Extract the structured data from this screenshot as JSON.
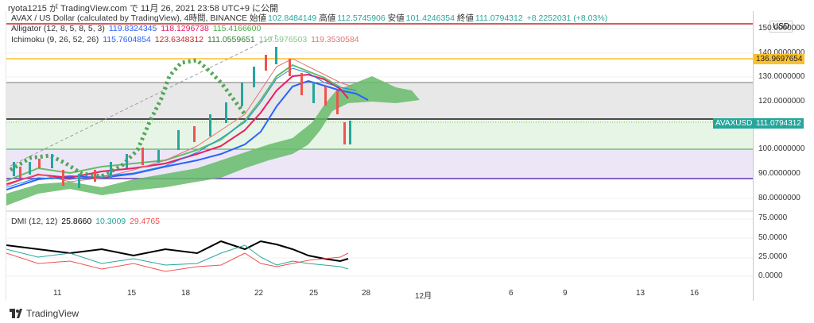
{
  "header": {
    "text": "ryota1215 が TradingView.com で 11月 26, 2021 23:58 UTC+9 に公開"
  },
  "symbol": {
    "name": "AVAX / US Dollar (calculated by TradingView), 4時間, BINANCE",
    "open_label": "始値",
    "open": "102.8484149",
    "high_label": "高値",
    "high": "112.5745906",
    "low_label": "安値",
    "low": "101.4246354",
    "close_label": "終値",
    "close": "111.0794312",
    "change": "+8.2252031 (+8.03%)"
  },
  "alligator": {
    "label": "Alligator (12, 8, 5, 8, 5, 3)",
    "v1": "119.8324345",
    "v2": "118.1296738",
    "v3": "115.4166600"
  },
  "ichimoku": {
    "label": "Ichimoku (9, 26, 52, 26)",
    "v1": "115.7604854",
    "v2": "123.6348312",
    "v3": "111.0559651",
    "v4": "119.5976503",
    "v5": "119.3530584"
  },
  "dmi": {
    "label": "DMI (12, 12)",
    "v1": "25.8660",
    "v2": "10.3009",
    "v3": "29.4765"
  },
  "currency_btn": "USD",
  "price_axis": [
    "150.0000000",
    "140.0000000",
    "130.0000000",
    "120.0000000",
    "100.0000000",
    "90.0000000",
    "80.0000000"
  ],
  "price_labels": {
    "yellow": "136.9697654",
    "symbol_tag": "AVAXUSD",
    "last": "111.0794312"
  },
  "dmi_axis": [
    "75.0000",
    "50.0000",
    "25.0000",
    "0.0000"
  ],
  "x_axis": [
    "11",
    "15",
    "18",
    "22",
    "25",
    "28",
    "12月",
    "6",
    "9",
    "13",
    "16"
  ],
  "footer": {
    "brand": "TradingView"
  },
  "colors": {
    "alligator_blue": "#2962ff",
    "alligator_red": "#e91e63",
    "alligator_green": "#4caf50",
    "ichimoku_cloud": "#66bb6a",
    "dmi_plus": "#26a69a",
    "dmi_minus": "#ef5350",
    "adx": "#000000"
  }
}
